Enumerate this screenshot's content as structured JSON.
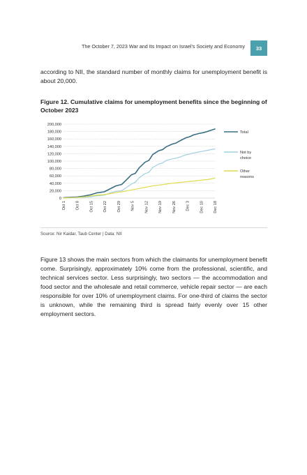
{
  "header": {
    "running_title": "The October 7, 2023 War and Its Impact on Israel's Society and Economy",
    "page_number": "33"
  },
  "paragraph_top": "according to NII, the standard number of monthly claims for unemployment benefit is about 20,000.",
  "figure": {
    "title": "Figure 12. Cumulative claims for unemployment benefits since the beginning of October 2023",
    "source": "Source: Nir Kaidar, Taub Center | Data: NII"
  },
  "paragraph_bottom": "Figure 13 shows the main sectors from which the claimants for unemployment benefit come. Surprisingly, approximately 10% come from the professional, scientific, and technical services sector. Less surprisingly, two sectors — the accommodation and food sector and the wholesale and retail commerce, vehicle repair sector — are each responsible for over 10% of unemployment claims. For one-third of claims the sector is unknown, while the remaining third is spread fairly evenly over 15 other employment sectors.",
  "chart_data": {
    "type": "line",
    "title": "",
    "xlabel": "",
    "ylabel": "",
    "ylim": [
      0,
      200000
    ],
    "yticks": [
      "0",
      "20,000",
      "40,000",
      "60,000",
      "80,000",
      "100,000",
      "120,000",
      "140,000",
      "160,000",
      "180,000",
      "200,000"
    ],
    "xtick_labels": [
      "Oct 1",
      "Oct 8",
      "Oct 15",
      "Oct 22",
      "Oct 29",
      "Nov 5",
      "Nov 12",
      "Nov 19",
      "Nov 26",
      "Dec 3",
      "Dec 10",
      "Dec 18"
    ],
    "grid": "horizontal dashed",
    "legend_position": "right",
    "x_range": [
      "2023-10-01",
      "2023-12-18"
    ],
    "series": [
      {
        "name": "Total",
        "color": "#3a6e84",
        "points": [
          [
            "2023-10-01",
            1000
          ],
          [
            "2023-10-05",
            2500
          ],
          [
            "2023-10-08",
            3000
          ],
          [
            "2023-10-11",
            5000
          ],
          [
            "2023-10-15",
            9000
          ],
          [
            "2023-10-18",
            14000
          ],
          [
            "2023-10-22",
            17000
          ],
          [
            "2023-10-25",
            25000
          ],
          [
            "2023-10-28",
            33000
          ],
          [
            "2023-10-31",
            37000
          ],
          [
            "2023-11-02",
            47000
          ],
          [
            "2023-11-05",
            63000
          ],
          [
            "2023-11-07",
            67000
          ],
          [
            "2023-11-09",
            82000
          ],
          [
            "2023-11-12",
            97000
          ],
          [
            "2023-11-14",
            102000
          ],
          [
            "2023-11-16",
            118000
          ],
          [
            "2023-11-19",
            128000
          ],
          [
            "2023-11-21",
            131000
          ],
          [
            "2023-11-23",
            139000
          ],
          [
            "2023-11-26",
            146000
          ],
          [
            "2023-11-28",
            149000
          ],
          [
            "2023-11-30",
            155000
          ],
          [
            "2023-12-03",
            163000
          ],
          [
            "2023-12-05",
            166000
          ],
          [
            "2023-12-07",
            171000
          ],
          [
            "2023-12-10",
            175000
          ],
          [
            "2023-12-12",
            177000
          ],
          [
            "2023-12-14",
            180000
          ],
          [
            "2023-12-18",
            187000
          ]
        ]
      },
      {
        "name": "Not by choice",
        "color": "#9fd0e0",
        "points": [
          [
            "2023-10-01",
            500
          ],
          [
            "2023-10-05",
            1000
          ],
          [
            "2023-10-08",
            1500
          ],
          [
            "2023-10-11",
            2000
          ],
          [
            "2023-10-15",
            3500
          ],
          [
            "2023-10-18",
            6000
          ],
          [
            "2023-10-22",
            8000
          ],
          [
            "2023-10-25",
            14000
          ],
          [
            "2023-10-28",
            18000
          ],
          [
            "2023-10-31",
            20000
          ],
          [
            "2023-11-02",
            27000
          ],
          [
            "2023-11-05",
            38000
          ],
          [
            "2023-11-07",
            43000
          ],
          [
            "2023-11-09",
            55000
          ],
          [
            "2023-11-12",
            66000
          ],
          [
            "2023-11-14",
            70000
          ],
          [
            "2023-11-16",
            83000
          ],
          [
            "2023-11-19",
            92000
          ],
          [
            "2023-11-21",
            95000
          ],
          [
            "2023-11-23",
            102000
          ],
          [
            "2023-11-26",
            106000
          ],
          [
            "2023-11-28",
            108000
          ],
          [
            "2023-11-30",
            111000
          ],
          [
            "2023-12-03",
            117000
          ],
          [
            "2023-12-05",
            119000
          ],
          [
            "2023-12-07",
            122000
          ],
          [
            "2023-12-10",
            125000
          ],
          [
            "2023-12-12",
            127000
          ],
          [
            "2023-12-14",
            129000
          ],
          [
            "2023-12-18",
            133000
          ]
        ]
      },
      {
        "name": "Other reasons",
        "color": "#dfdc4a",
        "points": [
          [
            "2023-10-01",
            500
          ],
          [
            "2023-10-05",
            1500
          ],
          [
            "2023-10-08",
            2000
          ],
          [
            "2023-10-11",
            3000
          ],
          [
            "2023-10-15",
            5500
          ],
          [
            "2023-10-18",
            8000
          ],
          [
            "2023-10-22",
            9500
          ],
          [
            "2023-10-25",
            12000
          ],
          [
            "2023-10-28",
            15000
          ],
          [
            "2023-10-31",
            17000
          ],
          [
            "2023-11-02",
            19000
          ],
          [
            "2023-11-05",
            22000
          ],
          [
            "2023-11-07",
            24000
          ],
          [
            "2023-11-09",
            26000
          ],
          [
            "2023-11-12",
            29000
          ],
          [
            "2023-11-14",
            31000
          ],
          [
            "2023-11-16",
            33000
          ],
          [
            "2023-11-19",
            35000
          ],
          [
            "2023-11-21",
            36500
          ],
          [
            "2023-11-23",
            38000
          ],
          [
            "2023-11-26",
            40000
          ],
          [
            "2023-11-28",
            41000
          ],
          [
            "2023-11-30",
            42500
          ],
          [
            "2023-12-03",
            44000
          ],
          [
            "2023-12-05",
            45000
          ],
          [
            "2023-12-07",
            46000
          ],
          [
            "2023-12-10",
            48000
          ],
          [
            "2023-12-12",
            49000
          ],
          [
            "2023-12-14",
            50000
          ],
          [
            "2023-12-18",
            54000
          ]
        ]
      }
    ]
  }
}
